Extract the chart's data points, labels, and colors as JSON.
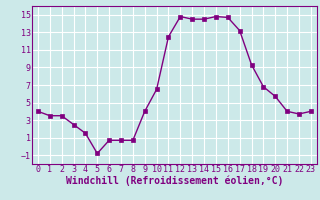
{
  "x": [
    0,
    1,
    2,
    3,
    4,
    5,
    6,
    7,
    8,
    9,
    10,
    11,
    12,
    13,
    14,
    15,
    16,
    17,
    18,
    19,
    20,
    21,
    22,
    23
  ],
  "y": [
    4.0,
    3.5,
    3.5,
    2.5,
    1.5,
    -0.8,
    0.7,
    0.7,
    0.7,
    4.0,
    6.5,
    12.5,
    14.8,
    14.5,
    14.5,
    14.8,
    14.7,
    13.2,
    9.3,
    6.8,
    5.7,
    4.0,
    3.7,
    4.0
  ],
  "line_color": "#800080",
  "marker": "s",
  "markersize": 2.5,
  "linewidth": 1.0,
  "xlabel": "Windchill (Refroidissement éolien,°C)",
  "xlim": [
    -0.5,
    23.5
  ],
  "ylim": [
    -2,
    16
  ],
  "yticks": [
    -1,
    1,
    3,
    5,
    7,
    9,
    11,
    13,
    15
  ],
  "xticks": [
    0,
    1,
    2,
    3,
    4,
    5,
    6,
    7,
    8,
    9,
    10,
    11,
    12,
    13,
    14,
    15,
    16,
    17,
    18,
    19,
    20,
    21,
    22,
    23
  ],
  "bg_color": "#cce9e9",
  "grid_color": "#ffffff",
  "tick_color": "#800080",
  "tick_fontsize": 6.0,
  "label_fontsize": 7.0,
  "spine_color": "#800080"
}
